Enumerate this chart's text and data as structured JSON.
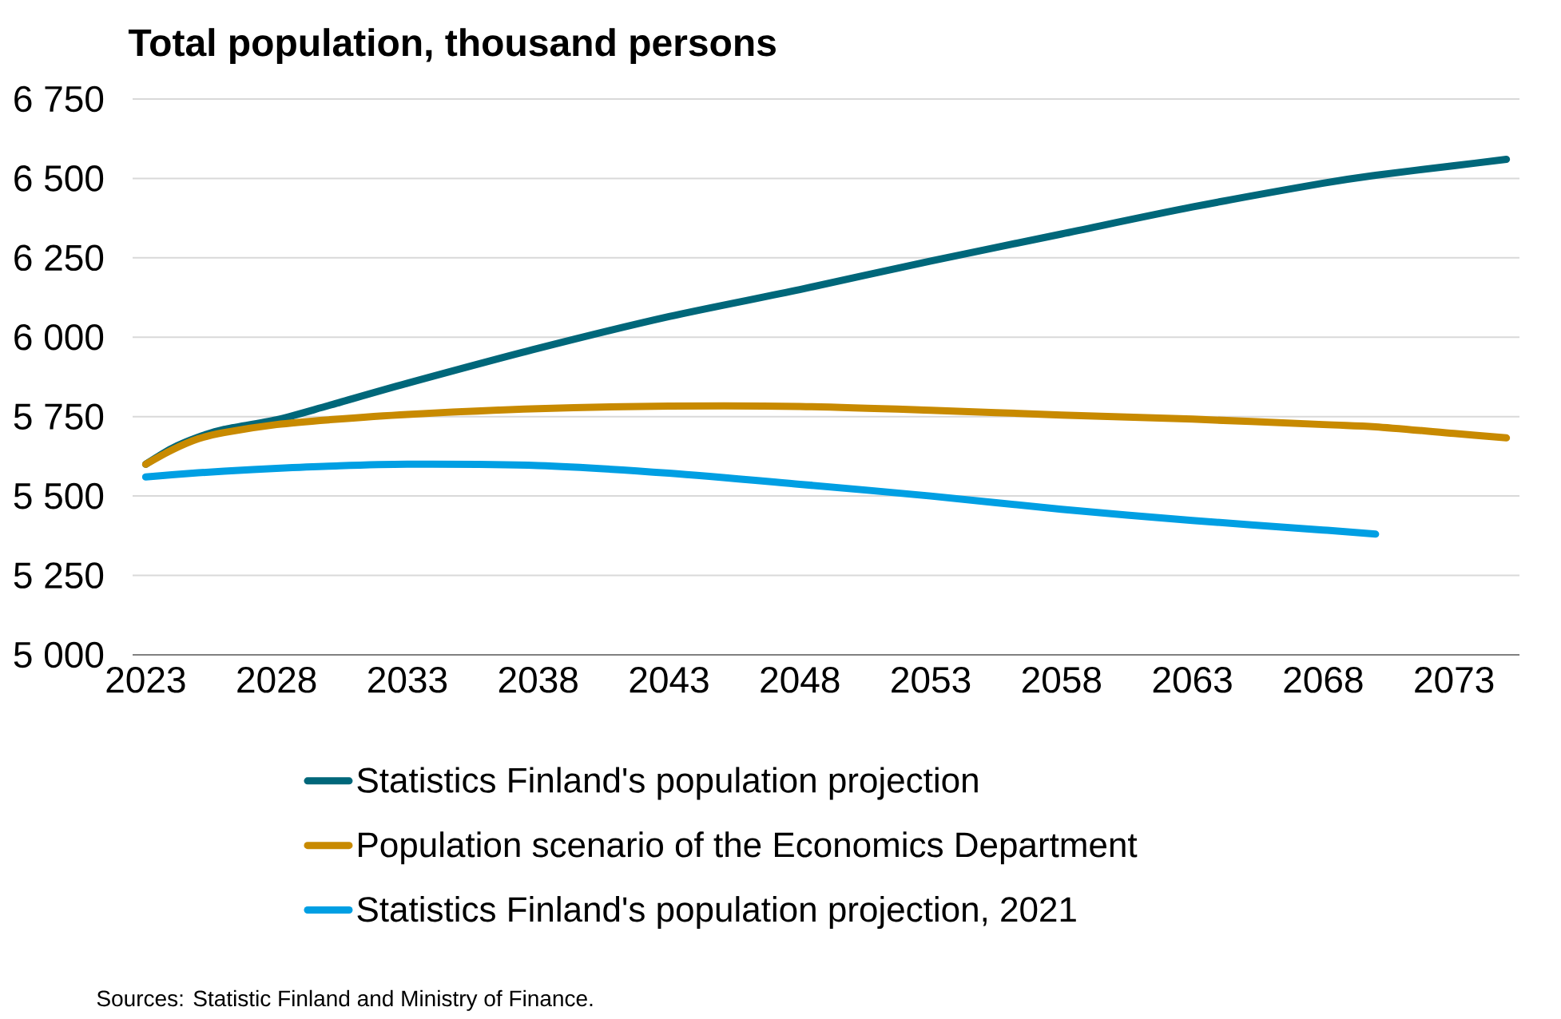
{
  "chart_data": {
    "type": "line",
    "title": "Total population, thousand persons",
    "x": [
      2023,
      2024,
      2025,
      2026,
      2028,
      2030,
      2033,
      2038,
      2043,
      2048,
      2053,
      2058,
      2063,
      2068,
      2070,
      2073,
      2075
    ],
    "xlim": [
      2022.5,
      2075.5
    ],
    "xticks": [
      2023,
      2028,
      2033,
      2038,
      2043,
      2048,
      2053,
      2058,
      2063,
      2068,
      2073
    ],
    "ylim": [
      5000,
      6750
    ],
    "yticks": [
      {
        "value": 5000,
        "label": "5 000"
      },
      {
        "value": 5250,
        "label": "5 250"
      },
      {
        "value": 5500,
        "label": "5 500"
      },
      {
        "value": 5750,
        "label": "5 750"
      },
      {
        "value": 6000,
        "label": "6 000"
      },
      {
        "value": 6250,
        "label": "6 250"
      },
      {
        "value": 6500,
        "label": "6 500"
      },
      {
        "value": 6750,
        "label": "6 750"
      }
    ],
    "series": [
      {
        "name": "Statistics Finland's population projection",
        "color": "#00677a",
        "values": [
          5600,
          5650,
          5685,
          5710,
          5740,
          5785,
          5855,
          5965,
          6065,
          6150,
          6240,
          6325,
          6410,
          6485,
          6510,
          6540,
          6560
        ]
      },
      {
        "name": "Population scenario of the Economics Department",
        "color": "#c88a00",
        "values": [
          5600,
          5645,
          5680,
          5700,
          5725,
          5740,
          5757,
          5775,
          5783,
          5782,
          5770,
          5755,
          5742,
          5725,
          5718,
          5697,
          5683
        ]
      },
      {
        "name": "Statistics Finland's population projection, 2021",
        "color": "#009fe3",
        "values": [
          5560,
          5567,
          5573,
          5578,
          5587,
          5594,
          5600,
          5596,
          5572,
          5537,
          5500,
          5458,
          5423,
          5393,
          5380,
          null,
          null
        ]
      }
    ],
    "grid": "y",
    "legend": "bottom",
    "line_style": "solid",
    "annotations": [
      "Sources: Statistic Finland and Ministry of Finance."
    ]
  }
}
